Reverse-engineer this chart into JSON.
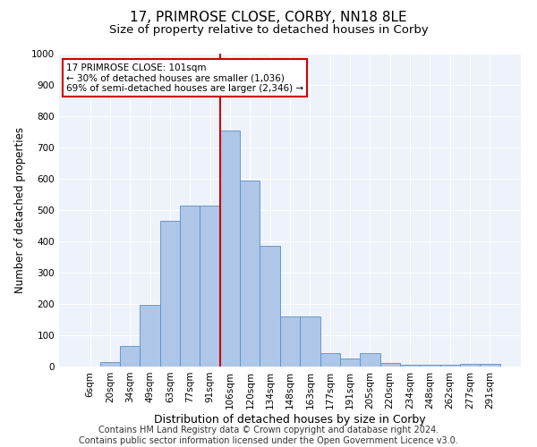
{
  "title1": "17, PRIMROSE CLOSE, CORBY, NN18 8LE",
  "title2": "Size of property relative to detached houses in Corby",
  "xlabel": "Distribution of detached houses by size in Corby",
  "ylabel": "Number of detached properties",
  "categories": [
    "6sqm",
    "20sqm",
    "34sqm",
    "49sqm",
    "63sqm",
    "77sqm",
    "91sqm",
    "106sqm",
    "120sqm",
    "134sqm",
    "148sqm",
    "163sqm",
    "177sqm",
    "191sqm",
    "205sqm",
    "220sqm",
    "234sqm",
    "248sqm",
    "262sqm",
    "277sqm",
    "291sqm"
  ],
  "values": [
    0,
    13,
    65,
    197,
    465,
    515,
    515,
    755,
    595,
    387,
    160,
    160,
    42,
    27,
    43,
    12,
    5,
    5,
    5,
    10,
    10
  ],
  "bar_color": "#aec6e8",
  "bar_edge_color": "#5a8fc3",
  "vline_x_index": 7,
  "vline_color": "#cc0000",
  "annotation_text": "17 PRIMROSE CLOSE: 101sqm\n← 30% of detached houses are smaller (1,036)\n69% of semi-detached houses are larger (2,346) →",
  "annotation_box_color": "#ffffff",
  "annotation_box_edge_color": "#cc0000",
  "ylim": [
    0,
    1000
  ],
  "yticks": [
    0,
    100,
    200,
    300,
    400,
    500,
    600,
    700,
    800,
    900,
    1000
  ],
  "background_color": "#eef2fa",
  "grid_color": "#ffffff",
  "footer1": "Contains HM Land Registry data © Crown copyright and database right 2024.",
  "footer2": "Contains public sector information licensed under the Open Government Licence v3.0.",
  "title1_fontsize": 11,
  "title2_fontsize": 9.5,
  "xlabel_fontsize": 9,
  "ylabel_fontsize": 8.5,
  "tick_fontsize": 7.5,
  "footer_fontsize": 7
}
